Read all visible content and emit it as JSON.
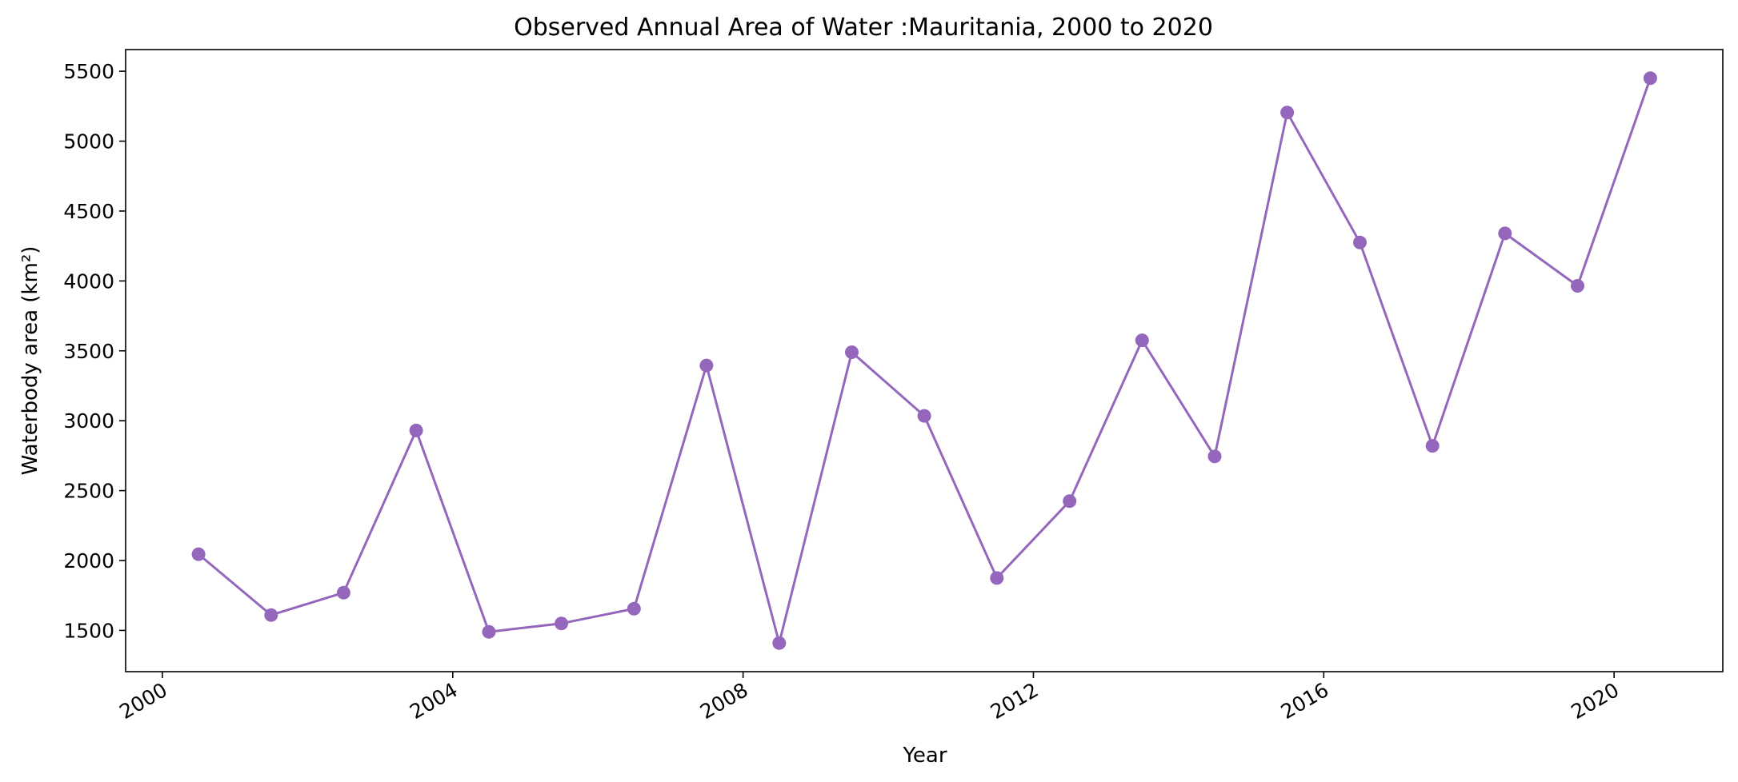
{
  "chart_data": {
    "type": "line",
    "title": "Observed Annual Area of Water :Mauritania, 2000 to 2020",
    "xlabel": "Year",
    "ylabel": "Waterbody area (km²)",
    "x": [
      "2000-07-01",
      "2001-07-01",
      "2002-07-01",
      "2003-07-01",
      "2004-07-01",
      "2005-07-01",
      "2006-07-01",
      "2007-07-01",
      "2008-07-01",
      "2009-07-01",
      "2010-07-01",
      "2011-07-01",
      "2012-07-01",
      "2013-07-01",
      "2014-07-01",
      "2015-07-01",
      "2016-07-01",
      "2017-07-01",
      "2018-07-01",
      "2019-07-01",
      "2020-07-01"
    ],
    "series": [
      {
        "values": [
          2045,
          1610,
          1770,
          2930,
          1490,
          1550,
          1655,
          3395,
          1410,
          3490,
          3035,
          1875,
          2425,
          3575,
          2745,
          5205,
          4275,
          2820,
          4340,
          3965,
          5450
        ]
      }
    ],
    "xlim": [
      "1999-06-30",
      "2021-07-01"
    ],
    "ylim": [
      1205,
      5655
    ],
    "x_ticks": [
      "2000",
      "2004",
      "2008",
      "2012",
      "2016",
      "2020"
    ],
    "y_ticks": [
      1500,
      2000,
      2500,
      3000,
      3500,
      4000,
      4500,
      5000,
      5500
    ],
    "grid": false,
    "legend": "none",
    "line_color": "#9467bd",
    "marker_color": "#9467bd"
  }
}
